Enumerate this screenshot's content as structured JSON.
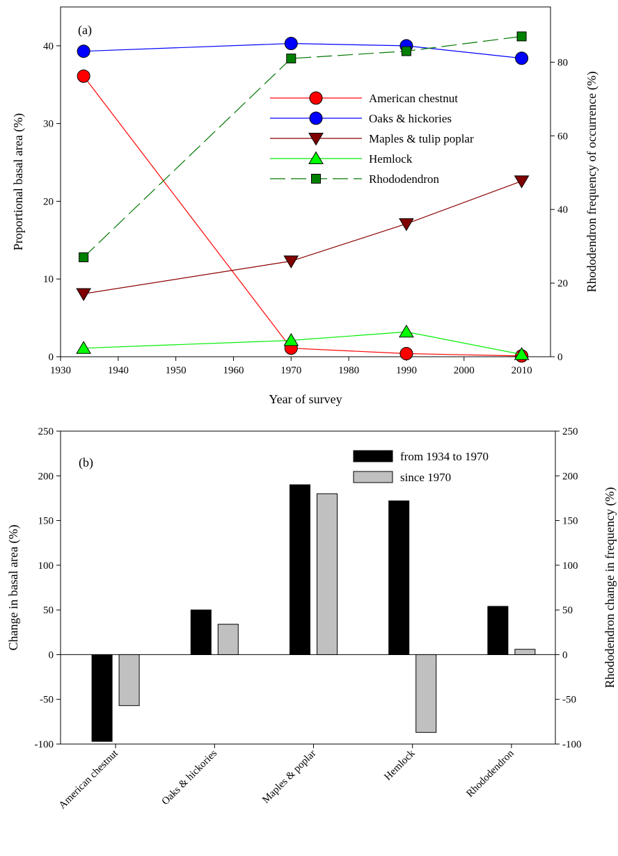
{
  "chart_data": [
    {
      "type": "line",
      "panel_label": "(a)",
      "xlabel": "Year of survey",
      "ylabel": "Proportional basal area (%)",
      "y2label": "Rhododendron frequency of occurrence (%)",
      "xlim": [
        1930,
        2015
      ],
      "ylim": [
        0,
        45
      ],
      "y2lim": [
        0,
        95
      ],
      "xticks": [
        1930,
        1940,
        1950,
        1960,
        1970,
        1980,
        1990,
        2000,
        2010
      ],
      "yticks": [
        0,
        10,
        20,
        30,
        40
      ],
      "y2ticks": [
        0,
        20,
        40,
        60,
        80
      ],
      "legend_position": "upper-right",
      "series": [
        {
          "name": "American chestnut",
          "x": [
            1934,
            1970,
            1990,
            2010
          ],
          "y": [
            36.1,
            1.1,
            0.4,
            0.1
          ],
          "axis": "left",
          "color": "#ff0000",
          "marker": "circle",
          "marker_color": "#ff0000",
          "dashed": false
        },
        {
          "name": "Oaks & hickories",
          "x": [
            1934,
            1970,
            1990,
            2010
          ],
          "y": [
            39.3,
            40.3,
            40.0,
            38.4
          ],
          "axis": "left",
          "color": "#0000ff",
          "marker": "circle",
          "marker_color": "#0000ff",
          "dashed": false
        },
        {
          "name": "Maples & tulip poplar",
          "x": [
            1934,
            1970,
            1990,
            2010
          ],
          "y": [
            8.1,
            12.3,
            17.1,
            22.6
          ],
          "axis": "left",
          "color": "#8b0000",
          "marker": "triangle-down",
          "marker_color": "#800000",
          "dashed": false
        },
        {
          "name": "Hemlock",
          "x": [
            1934,
            1970,
            1990,
            2010
          ],
          "y": [
            1.1,
            2.1,
            3.2,
            0.3
          ],
          "axis": "left",
          "color": "#00ee00",
          "marker": "triangle-up",
          "marker_color": "#00ff00",
          "dashed": false
        },
        {
          "name": "Rhododendron",
          "x": [
            1934,
            1970,
            1990,
            2010
          ],
          "y": [
            27,
            81,
            83,
            87
          ],
          "axis": "right",
          "color": "#007700",
          "marker": "square",
          "marker_color": "#008000",
          "dashed": true
        }
      ]
    },
    {
      "type": "bar",
      "panel_label": "(b)",
      "ylabel": "Change in basal area (%)",
      "y2label": "Rhododendron change in frequency (%)",
      "ylim": [
        -100,
        250
      ],
      "yticks": [
        -100,
        -50,
        0,
        50,
        100,
        150,
        200,
        250
      ],
      "y2ticks": [
        -100,
        -50,
        0,
        50,
        100,
        150,
        200,
        250
      ],
      "categories": [
        "American chestnut",
        "Oaks & hickories",
        "Maples & poplar",
        "Hemlock",
        "Rhododendron"
      ],
      "legend_position": "upper-right",
      "series": [
        {
          "name": "from 1934 to 1970",
          "color": "#000000",
          "values": [
            -97,
            50,
            190,
            172,
            54
          ]
        },
        {
          "name": "since 1970",
          "color": "#c0c0c0",
          "values": [
            -57,
            34,
            180,
            -87,
            6
          ]
        }
      ]
    }
  ]
}
